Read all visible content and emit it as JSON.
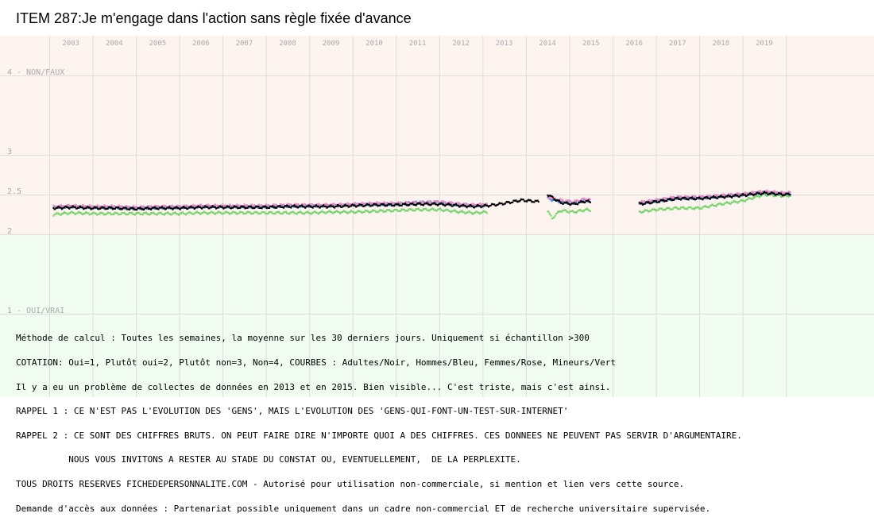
{
  "colors": {
    "upper_band": "#fdf3ef",
    "lower_band": "#f0fdf0",
    "grid": "#dddddd",
    "adultes": "#000000",
    "hommes": "#3b8ee8",
    "femmes": "#f08cc0",
    "mineurs": "#77d46a"
  },
  "chart_data": {
    "type": "scatter",
    "title": "ITEM 287:Je m'engage dans l'action sans règle fixée d'avance",
    "x_tick_labels": [
      "2003",
      "2004",
      "2005",
      "2006",
      "2007",
      "2008",
      "2009",
      "2010",
      "2011",
      "2012",
      "2013",
      "2014",
      "2015",
      "2016",
      "2017",
      "2018",
      "2019"
    ],
    "y_tick_labels": [
      {
        "value": 4,
        "label": "4 - NON/FAUX"
      },
      {
        "value": 3,
        "label": "3"
      },
      {
        "value": 2.5,
        "label": "2.5"
      },
      {
        "value": 2,
        "label": "2"
      },
      {
        "value": 1,
        "label": "1 - OUI/VRAI"
      }
    ],
    "ylim": [
      1,
      4
    ],
    "xlim": [
      2002.5,
      2019.7
    ],
    "grid": true,
    "gaps": [
      [
        2013.8,
        2014.0
      ],
      [
        2015.1,
        2016.1
      ]
    ],
    "series": [
      {
        "key": "adultes",
        "points": [
          [
            2002.6,
            2.33
          ],
          [
            2003.0,
            2.34
          ],
          [
            2003.5,
            2.33
          ],
          [
            2004.0,
            2.33
          ],
          [
            2004.5,
            2.32
          ],
          [
            2005.0,
            2.33
          ],
          [
            2005.5,
            2.33
          ],
          [
            2006.0,
            2.34
          ],
          [
            2006.5,
            2.34
          ],
          [
            2007.0,
            2.34
          ],
          [
            2007.5,
            2.34
          ],
          [
            2008.0,
            2.35
          ],
          [
            2008.5,
            2.35
          ],
          [
            2009.0,
            2.35
          ],
          [
            2009.5,
            2.36
          ],
          [
            2010.0,
            2.37
          ],
          [
            2010.5,
            2.37
          ],
          [
            2011.0,
            2.38
          ],
          [
            2011.5,
            2.38
          ],
          [
            2012.0,
            2.36
          ],
          [
            2012.3,
            2.35
          ],
          [
            2012.6,
            2.36
          ],
          [
            2012.9,
            2.38
          ],
          [
            2013.1,
            2.4
          ],
          [
            2013.4,
            2.43
          ],
          [
            2013.8,
            2.41
          ],
          [
            2014.0,
            2.5
          ],
          [
            2014.3,
            2.4
          ],
          [
            2014.6,
            2.38
          ],
          [
            2014.9,
            2.42
          ],
          [
            2015.0,
            2.4
          ],
          [
            2016.1,
            2.38
          ],
          [
            2016.5,
            2.41
          ],
          [
            2017.0,
            2.45
          ],
          [
            2017.5,
            2.45
          ],
          [
            2018.0,
            2.47
          ],
          [
            2018.5,
            2.49
          ],
          [
            2019.0,
            2.52
          ],
          [
            2019.5,
            2.5
          ],
          [
            2019.6,
            2.51
          ]
        ]
      },
      {
        "key": "hommes",
        "points": [
          [
            2002.6,
            2.34
          ],
          [
            2003.0,
            2.35
          ],
          [
            2003.5,
            2.34
          ],
          [
            2004.0,
            2.34
          ],
          [
            2004.5,
            2.33
          ],
          [
            2005.0,
            2.34
          ],
          [
            2005.5,
            2.34
          ],
          [
            2006.0,
            2.35
          ],
          [
            2006.5,
            2.35
          ],
          [
            2007.0,
            2.35
          ],
          [
            2007.5,
            2.35
          ],
          [
            2008.0,
            2.36
          ],
          [
            2008.5,
            2.36
          ],
          [
            2009.0,
            2.36
          ],
          [
            2009.5,
            2.37
          ],
          [
            2010.0,
            2.38
          ],
          [
            2010.5,
            2.38
          ],
          [
            2011.0,
            2.4
          ],
          [
            2011.5,
            2.4
          ],
          [
            2012.0,
            2.37
          ],
          [
            2012.3,
            2.36
          ],
          [
            2012.6,
            2.37
          ],
          [
            2014.0,
            2.45
          ],
          [
            2014.3,
            2.41
          ],
          [
            2014.6,
            2.4
          ],
          [
            2014.9,
            2.43
          ],
          [
            2015.0,
            2.41
          ],
          [
            2016.1,
            2.39
          ],
          [
            2016.5,
            2.42
          ],
          [
            2017.0,
            2.46
          ],
          [
            2017.5,
            2.46
          ],
          [
            2018.0,
            2.48
          ],
          [
            2018.5,
            2.5
          ],
          [
            2019.0,
            2.53
          ],
          [
            2019.5,
            2.51
          ],
          [
            2019.6,
            2.52
          ]
        ]
      },
      {
        "key": "femmes",
        "points": [
          [
            2002.6,
            2.35
          ],
          [
            2003.0,
            2.36
          ],
          [
            2003.5,
            2.35
          ],
          [
            2004.0,
            2.35
          ],
          [
            2004.5,
            2.34
          ],
          [
            2005.0,
            2.35
          ],
          [
            2005.5,
            2.35
          ],
          [
            2006.0,
            2.36
          ],
          [
            2006.5,
            2.36
          ],
          [
            2007.0,
            2.36
          ],
          [
            2007.5,
            2.36
          ],
          [
            2008.0,
            2.37
          ],
          [
            2008.5,
            2.37
          ],
          [
            2009.0,
            2.37
          ],
          [
            2009.5,
            2.38
          ],
          [
            2010.0,
            2.39
          ],
          [
            2010.5,
            2.39
          ],
          [
            2011.0,
            2.4
          ],
          [
            2011.5,
            2.41
          ],
          [
            2012.0,
            2.38
          ],
          [
            2012.3,
            2.37
          ],
          [
            2012.6,
            2.38
          ],
          [
            2014.0,
            2.47
          ],
          [
            2014.3,
            2.43
          ],
          [
            2014.6,
            2.41
          ],
          [
            2014.9,
            2.45
          ],
          [
            2015.0,
            2.43
          ],
          [
            2016.1,
            2.4
          ],
          [
            2016.5,
            2.43
          ],
          [
            2017.0,
            2.47
          ],
          [
            2017.5,
            2.47
          ],
          [
            2018.0,
            2.49
          ],
          [
            2018.5,
            2.51
          ],
          [
            2019.0,
            2.54
          ],
          [
            2019.5,
            2.52
          ],
          [
            2019.6,
            2.53
          ]
        ]
      },
      {
        "key": "mineurs",
        "points": [
          [
            2002.6,
            2.25
          ],
          [
            2003.0,
            2.27
          ],
          [
            2003.5,
            2.26
          ],
          [
            2004.0,
            2.26
          ],
          [
            2004.5,
            2.26
          ],
          [
            2005.0,
            2.26
          ],
          [
            2005.5,
            2.26
          ],
          [
            2006.0,
            2.27
          ],
          [
            2006.5,
            2.27
          ],
          [
            2007.0,
            2.27
          ],
          [
            2007.5,
            2.27
          ],
          [
            2008.0,
            2.27
          ],
          [
            2008.5,
            2.27
          ],
          [
            2009.0,
            2.28
          ],
          [
            2009.5,
            2.28
          ],
          [
            2010.0,
            2.29
          ],
          [
            2010.5,
            2.3
          ],
          [
            2011.0,
            2.31
          ],
          [
            2011.5,
            2.31
          ],
          [
            2012.0,
            2.28
          ],
          [
            2012.3,
            2.27
          ],
          [
            2012.6,
            2.28
          ],
          [
            2014.0,
            2.3
          ],
          [
            2014.1,
            2.2
          ],
          [
            2014.3,
            2.3
          ],
          [
            2014.6,
            2.28
          ],
          [
            2014.9,
            2.31
          ],
          [
            2015.0,
            2.3
          ],
          [
            2016.1,
            2.28
          ],
          [
            2016.5,
            2.31
          ],
          [
            2017.0,
            2.33
          ],
          [
            2017.5,
            2.33
          ],
          [
            2018.0,
            2.38
          ],
          [
            2018.5,
            2.42
          ],
          [
            2019.0,
            2.5
          ],
          [
            2019.5,
            2.48
          ],
          [
            2019.6,
            2.49
          ]
        ]
      }
    ]
  },
  "notes": [
    "Méthode de calcul : Toutes les semaines, la moyenne sur les 30 derniers jours. Uniquement si échantillon >300",
    "COTATION: Oui=1, Plutôt oui=2, Plutôt non=3, Non=4, COURBES : Adultes/Noir, Hommes/Bleu, Femmes/Rose, Mineurs/Vert",
    "Il y a eu un problème de collectes de données en 2013 et en 2015. Bien visible... C'est triste, mais c'est ainsi.",
    "RAPPEL 1 : CE N'EST PAS L'EVOLUTION DES 'GENS', MAIS L'EVOLUTION DES 'GENS-QUI-FONT-UN-TEST-SUR-INTERNET'",
    "RAPPEL 2 : CE SONT DES CHIFFRES BRUTS. ON PEUT FAIRE DIRE N'IMPORTE QUOI A DES CHIFFRES. CES DONNEES NE PEUVENT PAS SERVIR D'ARGUMENTAIRE.",
    "          NOUS VOUS INVITONS A RESTER AU STADE DU CONSTAT OU, EVENTUELLEMENT,  DE LA PERPLEXITE.",
    "TOUS DROITS RESERVES FICHEDEPERSONNALITE.COM - Autorisé pour utilisation non-commerciale, si mention et lien vers cette source.",
    "Demande d'accès aux données : Partenariat possible uniquement dans un cadre non-commercial ET de recherche universitaire supervisée."
  ]
}
